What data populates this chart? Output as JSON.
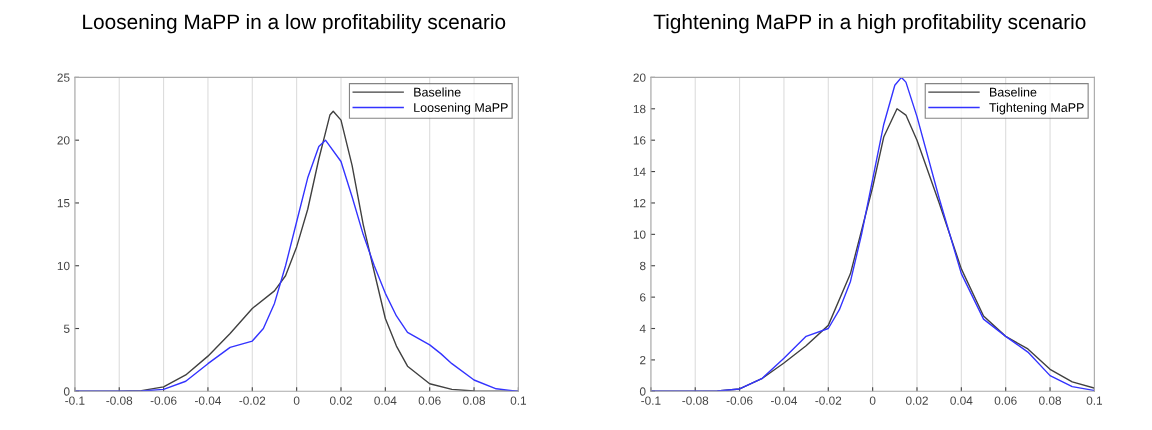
{
  "chart_data": [
    {
      "type": "line",
      "title": "Loosening MaPP in a low profitability scenario",
      "xlim": [
        -0.1,
        0.1
      ],
      "xticks": [
        -0.1,
        -0.08,
        -0.06,
        -0.04,
        -0.02,
        0,
        0.02,
        0.04,
        0.06,
        0.08,
        0.1
      ],
      "ylim": [
        0,
        25
      ],
      "yticks": [
        0,
        5,
        10,
        15,
        20,
        25
      ],
      "grid": "x",
      "legend": "top right",
      "series": [
        {
          "name": "Baseline",
          "color": "#404040",
          "x": [
            -0.1,
            -0.08,
            -0.07,
            -0.06,
            -0.05,
            -0.04,
            -0.03,
            -0.02,
            -0.01,
            -0.005,
            0,
            0.005,
            0.01,
            0.015,
            0.0165,
            0.02,
            0.025,
            0.03,
            0.035,
            0.04,
            0.045,
            0.05,
            0.06,
            0.07,
            0.08,
            0.1
          ],
          "values": [
            0,
            0,
            0.05,
            0.35,
            1.3,
            2.8,
            4.6,
            6.6,
            8.0,
            9.2,
            11.5,
            14.5,
            18.5,
            22.0,
            22.3,
            21.6,
            18,
            13.3,
            9.5,
            5.8,
            3.6,
            2.0,
            0.6,
            0.15,
            0.02,
            0
          ]
        },
        {
          "name": "Loosening MaPP",
          "color": "#3333ff",
          "x": [
            -0.1,
            -0.07,
            -0.06,
            -0.05,
            -0.04,
            -0.03,
            -0.02,
            -0.015,
            -0.01,
            -0.005,
            0,
            0.005,
            0.01,
            0.013,
            0.02,
            0.025,
            0.03,
            0.035,
            0.04,
            0.045,
            0.05,
            0.06,
            0.065,
            0.07,
            0.08,
            0.09,
            0.1
          ],
          "values": [
            0,
            0.02,
            0.15,
            0.8,
            2.2,
            3.5,
            4.0,
            5.0,
            7.0,
            10.0,
            13.5,
            17,
            19.5,
            20.0,
            18.3,
            15.5,
            12.5,
            10.0,
            7.8,
            6.0,
            4.7,
            3.7,
            3.0,
            2.2,
            0.9,
            0.2,
            0
          ]
        }
      ]
    },
    {
      "type": "line",
      "title": "Tightening MaPP in a high profitability scenario",
      "xlim": [
        -0.1,
        0.1
      ],
      "xticks": [
        -0.1,
        -0.08,
        -0.06,
        -0.04,
        -0.02,
        0,
        0.02,
        0.04,
        0.06,
        0.08,
        0.1
      ],
      "ylim": [
        0,
        20
      ],
      "yticks": [
        0,
        2,
        4,
        6,
        8,
        10,
        12,
        14,
        16,
        18,
        20
      ],
      "grid": "x",
      "legend": "top right",
      "series": [
        {
          "name": "Baseline",
          "color": "#404040",
          "x": [
            -0.1,
            -0.07,
            -0.06,
            -0.05,
            -0.04,
            -0.03,
            -0.02,
            -0.01,
            0,
            0.005,
            0.011,
            0.015,
            0.02,
            0.03,
            0.04,
            0.05,
            0.06,
            0.07,
            0.08,
            0.09,
            0.1
          ],
          "values": [
            0,
            0.02,
            0.15,
            0.8,
            1.8,
            2.9,
            4.2,
            7.5,
            13,
            16.2,
            18.0,
            17.6,
            16.0,
            12.0,
            7.8,
            4.8,
            3.5,
            2.7,
            1.4,
            0.6,
            0.2
          ]
        },
        {
          "name": "Tightening MaPP",
          "color": "#3333ff",
          "x": [
            -0.1,
            -0.07,
            -0.06,
            -0.05,
            -0.04,
            -0.03,
            -0.02,
            -0.015,
            -0.01,
            -0.005,
            0,
            0.005,
            0.01,
            0.013,
            0.015,
            0.02,
            0.03,
            0.04,
            0.05,
            0.06,
            0.07,
            0.08,
            0.09,
            0.1
          ],
          "values": [
            0,
            0.02,
            0.15,
            0.8,
            2.1,
            3.5,
            4.0,
            5.2,
            7.0,
            10.0,
            13.5,
            17.0,
            19.5,
            20.0,
            19.7,
            17.5,
            12.3,
            7.5,
            4.6,
            3.5,
            2.5,
            1.0,
            0.3,
            0.05
          ]
        }
      ]
    }
  ]
}
